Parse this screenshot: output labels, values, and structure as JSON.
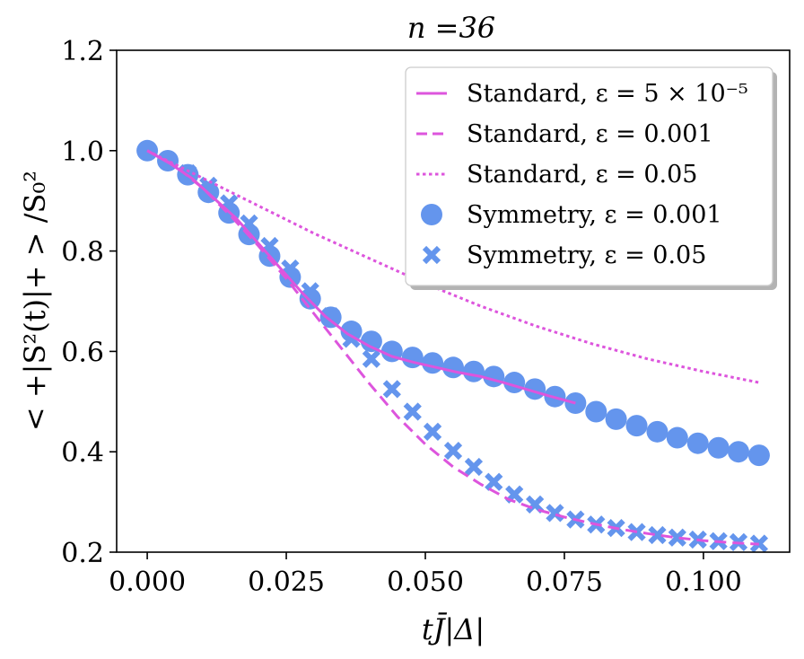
{
  "chart_data": {
    "type": "line",
    "title": "n =36",
    "xlabel": "tJ̄|Δ|",
    "ylabel": "< +|S²(t)|+ > /S₀²",
    "xlim": [
      -0.0055,
      0.1155
    ],
    "ylim": [
      0.2,
      1.2
    ],
    "xticks": [
      0.0,
      0.025,
      0.05,
      0.075,
      0.1
    ],
    "xtick_labels": [
      "0.000",
      "0.025",
      "0.050",
      "0.075",
      "0.100"
    ],
    "yticks": [
      0.2,
      0.4,
      0.6,
      0.8,
      1.0,
      1.2
    ],
    "ytick_labels": [
      "0.2",
      "0.4",
      "0.6",
      "0.8",
      "1.0",
      "1.2"
    ],
    "grid": false,
    "legend_position": "top-right",
    "series": [
      {
        "name": "Standard, ε = 5 × 10⁻⁵",
        "style": "solid-line",
        "color": "#dd55dd",
        "x": [
          0.0,
          0.004,
          0.008,
          0.012,
          0.016,
          0.02,
          0.024,
          0.028,
          0.032,
          0.036,
          0.04,
          0.044,
          0.048,
          0.052,
          0.056,
          0.06,
          0.064,
          0.068,
          0.072,
          0.077
        ],
        "y": [
          1.0,
          0.975,
          0.945,
          0.905,
          0.865,
          0.815,
          0.765,
          0.715,
          0.67,
          0.635,
          0.61,
          0.59,
          0.578,
          0.568,
          0.558,
          0.55,
          0.538,
          0.525,
          0.512,
          0.497
        ]
      },
      {
        "name": "Standard, ε = 0.001",
        "style": "dashed-line",
        "color": "#dd55dd",
        "x": [
          0.0,
          0.005,
          0.01,
          0.015,
          0.02,
          0.025,
          0.03,
          0.035,
          0.04,
          0.045,
          0.05,
          0.055,
          0.06,
          0.065,
          0.07,
          0.075,
          0.08,
          0.085,
          0.09,
          0.095,
          0.1,
          0.105,
          0.11
        ],
        "y": [
          1.0,
          0.97,
          0.925,
          0.87,
          0.81,
          0.745,
          0.675,
          0.605,
          0.535,
          0.47,
          0.415,
          0.37,
          0.335,
          0.305,
          0.285,
          0.27,
          0.257,
          0.246,
          0.237,
          0.229,
          0.223,
          0.219,
          0.216
        ]
      },
      {
        "name": "Standard, ε = 0.05",
        "style": "dotted-line",
        "color": "#dd55dd",
        "x": [
          0.0,
          0.01,
          0.02,
          0.03,
          0.04,
          0.05,
          0.06,
          0.07,
          0.08,
          0.09,
          0.1,
          0.11
        ],
        "y": [
          1.0,
          0.945,
          0.89,
          0.835,
          0.785,
          0.735,
          0.69,
          0.65,
          0.615,
          0.585,
          0.56,
          0.538
        ]
      },
      {
        "name": "Symmetry, ε = 0.001",
        "style": "circle-markers",
        "color": "#6495ed",
        "x": [
          0.0,
          0.0037,
          0.0073,
          0.011,
          0.0147,
          0.0183,
          0.022,
          0.0257,
          0.0293,
          0.033,
          0.0367,
          0.0403,
          0.044,
          0.0477,
          0.0513,
          0.055,
          0.0587,
          0.0623,
          0.066,
          0.0697,
          0.0733,
          0.077,
          0.0807,
          0.0843,
          0.088,
          0.0917,
          0.0953,
          0.099,
          0.1027,
          0.1063,
          0.11
        ],
        "y": [
          1.0,
          0.98,
          0.952,
          0.917,
          0.876,
          0.833,
          0.79,
          0.748,
          0.705,
          0.668,
          0.64,
          0.62,
          0.6,
          0.588,
          0.577,
          0.568,
          0.56,
          0.55,
          0.538,
          0.525,
          0.51,
          0.497,
          0.48,
          0.465,
          0.452,
          0.44,
          0.428,
          0.417,
          0.408,
          0.4,
          0.393
        ]
      },
      {
        "name": "Symmetry, ε = 0.05",
        "style": "x-markers",
        "color": "#6495ed",
        "x": [
          0.0073,
          0.011,
          0.0147,
          0.0183,
          0.022,
          0.0257,
          0.0293,
          0.033,
          0.0367,
          0.0403,
          0.044,
          0.0477,
          0.0513,
          0.055,
          0.0587,
          0.0623,
          0.066,
          0.0697,
          0.0733,
          0.077,
          0.0807,
          0.0843,
          0.088,
          0.0917,
          0.0953,
          0.099,
          0.1027,
          0.1063,
          0.11
        ],
        "y": [
          0.955,
          0.93,
          0.895,
          0.855,
          0.81,
          0.765,
          0.72,
          0.67,
          0.625,
          0.585,
          0.525,
          0.48,
          0.44,
          0.402,
          0.37,
          0.34,
          0.315,
          0.295,
          0.278,
          0.265,
          0.255,
          0.248,
          0.24,
          0.234,
          0.229,
          0.225,
          0.222,
          0.22,
          0.217
        ]
      }
    ]
  }
}
